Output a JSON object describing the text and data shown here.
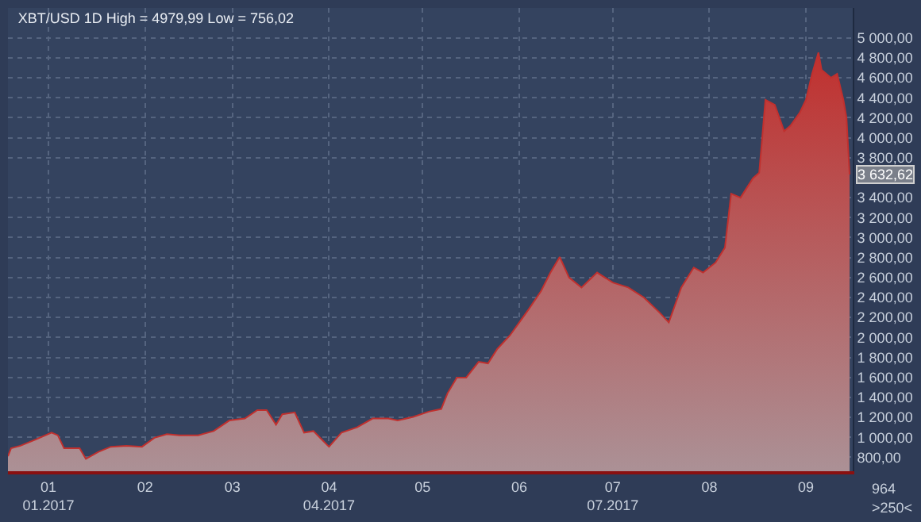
{
  "chart_data": {
    "type": "area",
    "title": "XBT/USD 1D High = 4979,99 Low = 756,02",
    "x": [
      "2016-12-19",
      "2016-12-20",
      "2016-12-23",
      "2016-12-28",
      "2017-01-02",
      "2017-01-04",
      "2017-01-06",
      "2017-01-11",
      "2017-01-13",
      "2017-01-17",
      "2017-01-21",
      "2017-01-26",
      "2017-01-31",
      "2017-02-04",
      "2017-02-08",
      "2017-02-12",
      "2017-02-18",
      "2017-02-23",
      "2017-02-28",
      "2017-03-05",
      "2017-03-09",
      "2017-03-12",
      "2017-03-15",
      "2017-03-17",
      "2017-03-21",
      "2017-03-24",
      "2017-03-27",
      "2017-03-30",
      "2017-04-01",
      "2017-04-05",
      "2017-04-10",
      "2017-04-15",
      "2017-04-20",
      "2017-04-23",
      "2017-04-28",
      "2017-05-03",
      "2017-05-07",
      "2017-05-09",
      "2017-05-12",
      "2017-05-15",
      "2017-05-19",
      "2017-05-22",
      "2017-05-25",
      "2017-05-29",
      "2017-06-01",
      "2017-06-04",
      "2017-06-08",
      "2017-06-11",
      "2017-06-14",
      "2017-06-17",
      "2017-06-21",
      "2017-06-26",
      "2017-07-01",
      "2017-07-06",
      "2017-07-11",
      "2017-07-16",
      "2017-07-19",
      "2017-07-23",
      "2017-07-27",
      "2017-07-30",
      "2017-08-03",
      "2017-08-06",
      "2017-08-08",
      "2017-08-11",
      "2017-08-15",
      "2017-08-17",
      "2017-08-19",
      "2017-08-22",
      "2017-08-25",
      "2017-08-27",
      "2017-08-30",
      "2017-09-01",
      "2017-09-03",
      "2017-09-05",
      "2017-09-06",
      "2017-09-09",
      "2017-09-11",
      "2017-09-13",
      "2017-09-14",
      "2017-09-15"
    ],
    "series": [
      {
        "color": "#c0302e",
        "values": [
          810,
          890,
          915,
          979,
          1047,
          1020,
          890,
          890,
          784,
          853,
          905,
          915,
          905,
          995,
          1031,
          1020,
          1020,
          1062,
          1168,
          1188,
          1272,
          1272,
          1126,
          1231,
          1250,
          1047,
          1062,
          968,
          905,
          1047,
          1100,
          1188,
          1188,
          1168,
          1204,
          1257,
          1283,
          1440,
          1598,
          1598,
          1756,
          1740,
          1886,
          2019,
          2149,
          2280,
          2464,
          2648,
          2806,
          2600,
          2500,
          2650,
          2550,
          2500,
          2400,
          2250,
          2150,
          2500,
          2700,
          2650,
          2750,
          2900,
          3440,
          3400,
          3594,
          3650,
          4380,
          4330,
          4066,
          4120,
          4250,
          4380,
          4643,
          4853,
          4680,
          4600,
          4640,
          4380,
          4200,
          3632.62
        ]
      }
    ],
    "xlim": [
      "2016-12-19",
      "2017-09-16"
    ],
    "xticks": [
      {
        "value": "2017-01-01",
        "label": "01\n01.2017"
      },
      {
        "value": "2017-02-01",
        "label": "02"
      },
      {
        "value": "2017-03-01",
        "label": "03"
      },
      {
        "value": "2017-04-01",
        "label": "04\n04.2017"
      },
      {
        "value": "2017-05-01",
        "label": "05"
      },
      {
        "value": "2017-06-01",
        "label": "06"
      },
      {
        "value": "2017-07-01",
        "label": "07\n07.2017"
      },
      {
        "value": "2017-08-01",
        "label": "08"
      },
      {
        "value": "2017-09-01",
        "label": "09"
      }
    ],
    "ylim": [
      660,
      5300
    ],
    "yticks": [
      {
        "value": 800,
        "label": "800,00"
      },
      {
        "value": 1000,
        "label": "1 000,00"
      },
      {
        "value": 1200,
        "label": "1 200,00"
      },
      {
        "value": 1400,
        "label": "1 400,00"
      },
      {
        "value": 1600,
        "label": "1 600,00"
      },
      {
        "value": 1800,
        "label": "1 800,00"
      },
      {
        "value": 2000,
        "label": "2 000,00"
      },
      {
        "value": 2200,
        "label": "2 200,00"
      },
      {
        "value": 2400,
        "label": "2 400,00"
      },
      {
        "value": 2600,
        "label": "2 600,00"
      },
      {
        "value": 2800,
        "label": "2 800,00"
      },
      {
        "value": 3000,
        "label": "3 000,00"
      },
      {
        "value": 3200,
        "label": "3 200,00"
      },
      {
        "value": 3400,
        "label": "3 400,00"
      },
      {
        "value": 3800,
        "label": "3 800,00"
      },
      {
        "value": 4000,
        "label": "4 000,00"
      },
      {
        "value": 4200,
        "label": "4 200,00"
      },
      {
        "value": 4400,
        "label": "4 400,00"
      },
      {
        "value": 4600,
        "label": "4 600,00"
      },
      {
        "value": 4800,
        "label": "4 800,00"
      },
      {
        "value": 5000,
        "label": "5 000,00"
      }
    ],
    "annotations": [
      {
        "text": "3 632,62",
        "x": "2017-09-15",
        "y": 3632.62
      },
      "964",
      ">250<"
    ],
    "grid": true,
    "legend": false
  }
}
